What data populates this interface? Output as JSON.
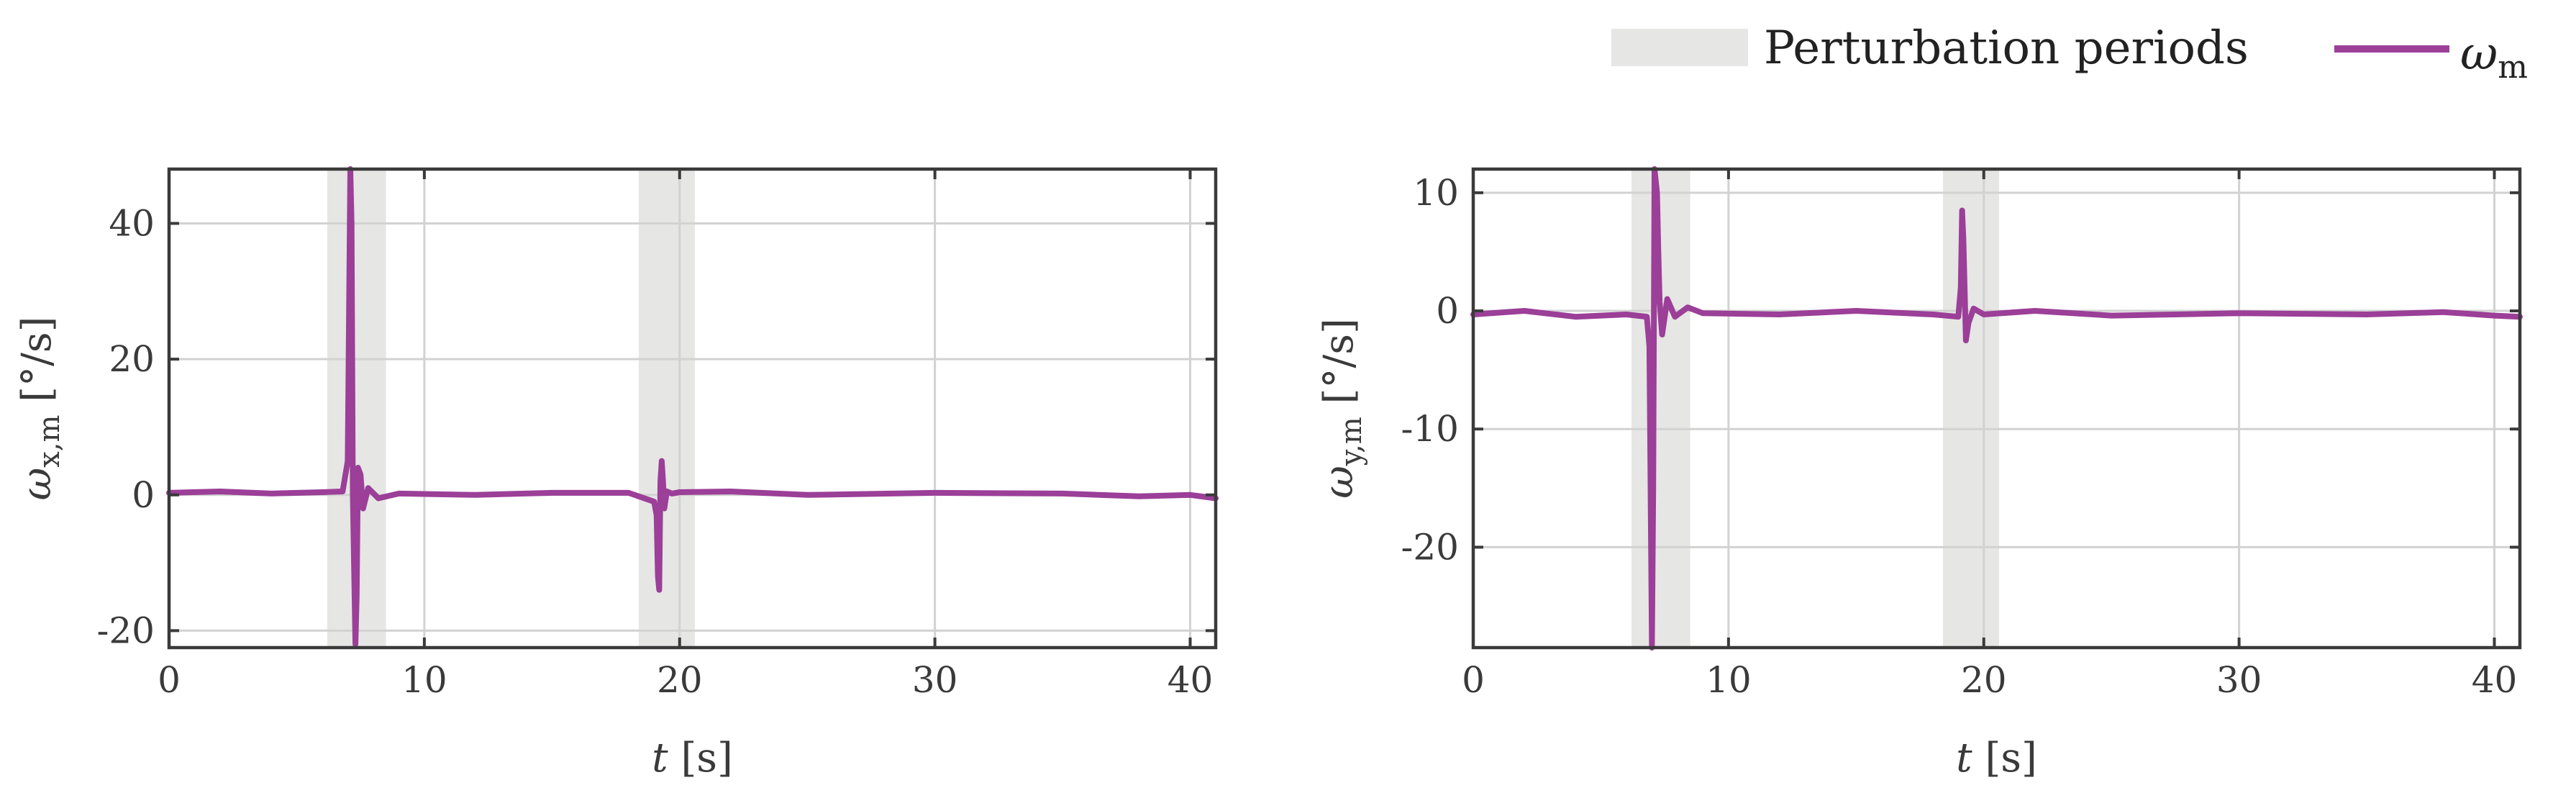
{
  "colors": {
    "series": "#9b3f98",
    "shade": "#e6e6e4"
  },
  "legend": {
    "placement": "top-right",
    "shade_label": "Perturbation periods",
    "series_symbol": "ω",
    "series_sub": "m"
  },
  "chart_data": [
    {
      "type": "line",
      "xlabel": {
        "symbol": "t",
        "unit": "[s]"
      },
      "ylabel": {
        "symbol": "ω",
        "sub": "x,m",
        "unit": "[°/s]"
      },
      "xlim": [
        0,
        41
      ],
      "ylim": [
        -22.5,
        48
      ],
      "xticks": [
        0,
        10,
        20,
        30,
        40
      ],
      "yticks": [
        -20,
        0,
        20,
        40
      ],
      "ytick_labels": [
        "-20",
        "0",
        "20",
        "40"
      ],
      "grid": true,
      "shaded_periods": [
        [
          6.2,
          8.5
        ],
        [
          18.4,
          20.6
        ]
      ],
      "series": [
        {
          "x": [
            0,
            2,
            4,
            6,
            6.8,
            7.0,
            7.1,
            7.15,
            7.2,
            7.3,
            7.35,
            7.4,
            7.5,
            7.6,
            7.8,
            8.2,
            9,
            12,
            15,
            18,
            19.0,
            19.1,
            19.15,
            19.2,
            19.25,
            19.3,
            19.35,
            19.4,
            19.5,
            19.7,
            20,
            22,
            25,
            30,
            35,
            38,
            40,
            41
          ],
          "y": [
            0.3,
            0.5,
            0.2,
            0.4,
            0.5,
            5,
            48,
            40,
            0,
            -22,
            -15,
            4,
            3,
            -2,
            1,
            -0.5,
            0.2,
            0,
            0.3,
            0.3,
            -1,
            -3,
            -12,
            -14,
            2,
            5,
            2,
            -2,
            0.5,
            0.2,
            0.4,
            0.5,
            0,
            0.3,
            0.2,
            -0.2,
            0,
            -0.5
          ]
        }
      ]
    },
    {
      "type": "line",
      "xlabel": {
        "symbol": "t",
        "unit": "[s]"
      },
      "ylabel": {
        "symbol": "ω",
        "sub": "y,m",
        "unit": "[°/s]"
      },
      "xlim": [
        0,
        41
      ],
      "ylim": [
        -28.5,
        12
      ],
      "xticks": [
        0,
        10,
        20,
        30,
        40
      ],
      "yticks": [
        -20,
        -10,
        0,
        10
      ],
      "ytick_labels": [
        "-20",
        "-10",
        "0",
        "10"
      ],
      "grid": true,
      "shaded_periods": [
        [
          6.2,
          8.5
        ],
        [
          18.4,
          20.6
        ]
      ],
      "series": [
        {
          "x": [
            0,
            2,
            4,
            6,
            6.8,
            6.9,
            7.0,
            7.05,
            7.1,
            7.2,
            7.25,
            7.3,
            7.4,
            7.6,
            7.9,
            8.4,
            9,
            12,
            15,
            18,
            19.0,
            19.1,
            19.15,
            19.2,
            19.3,
            19.4,
            19.6,
            20,
            22,
            25,
            30,
            35,
            38,
            40,
            41
          ],
          "y": [
            -0.3,
            0,
            -0.5,
            -0.3,
            -0.5,
            -3,
            -28.5,
            -15,
            12,
            10,
            5,
            0.8,
            -2,
            1,
            -0.5,
            0.3,
            -0.2,
            -0.3,
            0,
            -0.3,
            -0.5,
            2,
            8.5,
            6,
            -2.5,
            -1,
            0.2,
            -0.3,
            0,
            -0.4,
            -0.2,
            -0.3,
            -0.1,
            -0.4,
            -0.5
          ]
        }
      ]
    }
  ]
}
